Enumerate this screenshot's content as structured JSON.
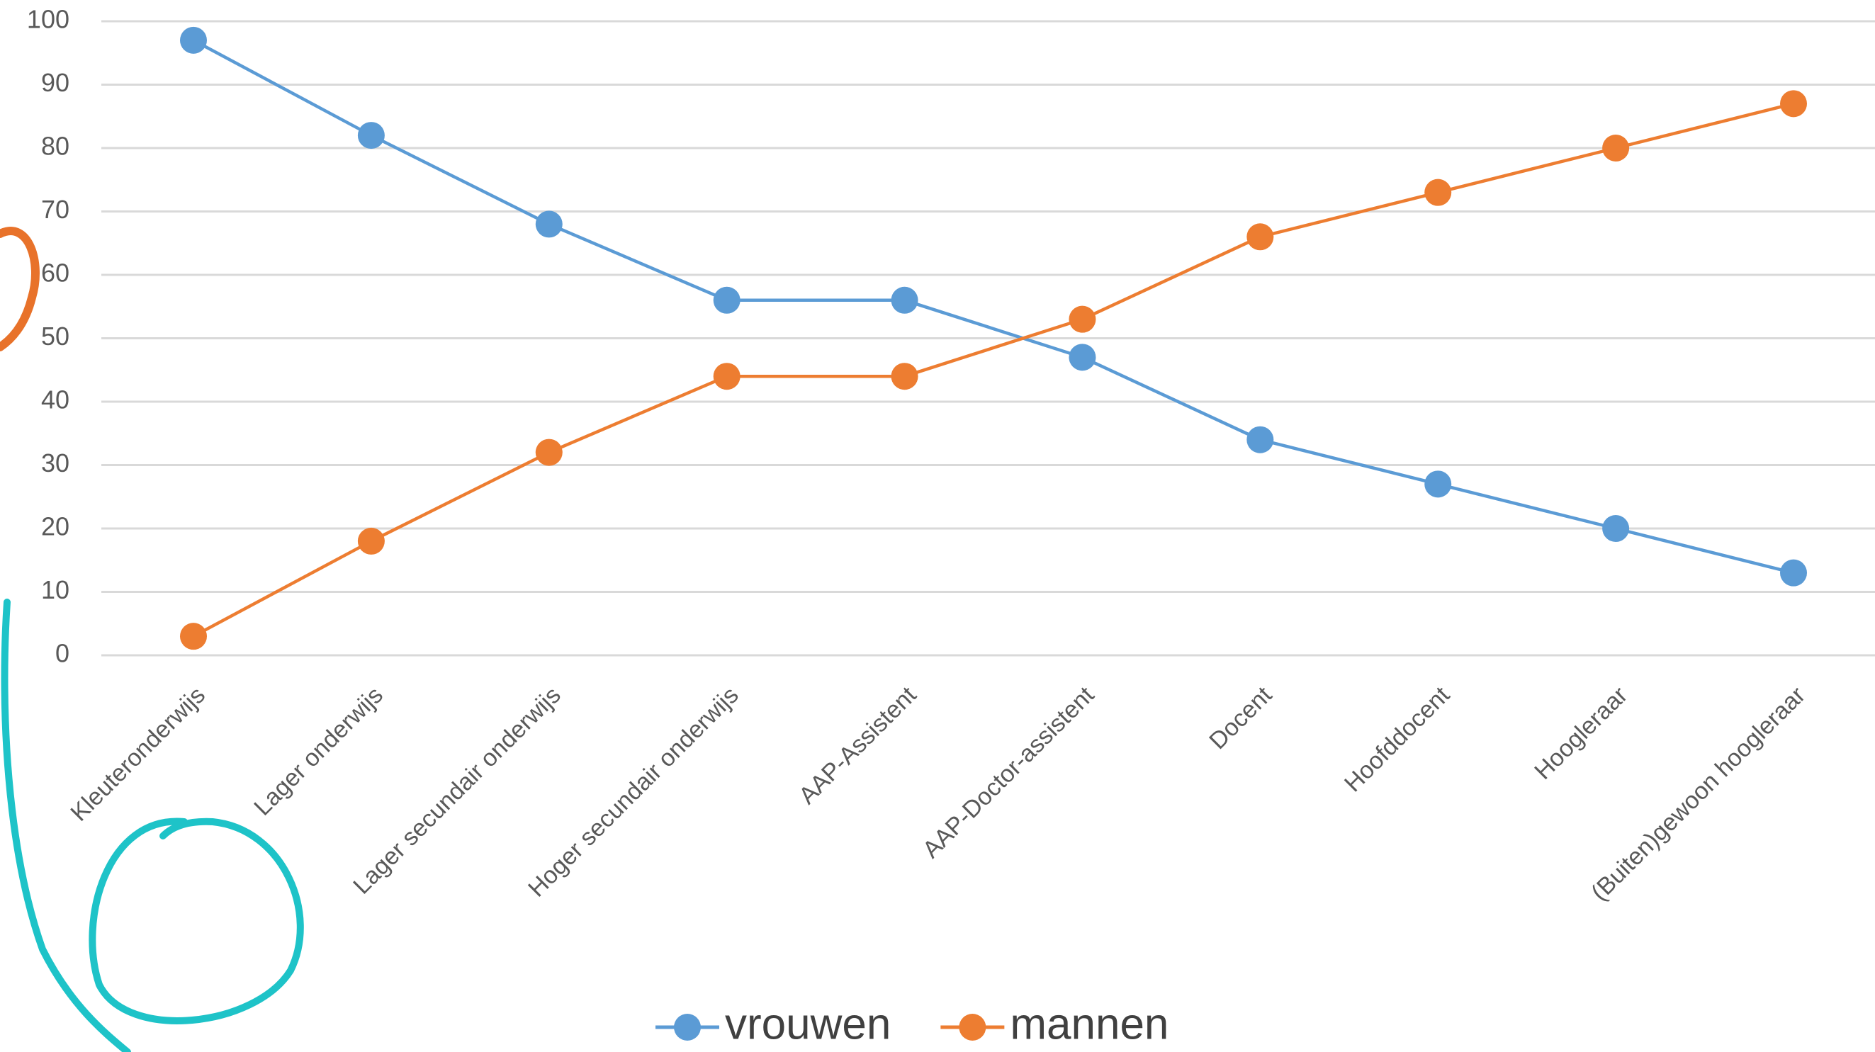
{
  "chart_data": {
    "type": "line",
    "categories": [
      "Kleuteronderwijs",
      "Lager onderwijs",
      "Lager secundair onderwijs",
      "Hoger secundair onderwijs",
      "AAP-Assistent",
      "AAP-Doctor-assistent",
      "Docent",
      "Hoofddocent",
      "Hoogleraar",
      "(Buiten)gewoon hoogleraar"
    ],
    "series": [
      {
        "name": "vrouwen",
        "color": "#5b9bd5",
        "values": [
          97,
          82,
          68,
          56,
          56,
          47,
          34,
          27,
          20,
          13
        ]
      },
      {
        "name": "mannen",
        "color": "#ed7d31",
        "values": [
          3,
          18,
          32,
          44,
          44,
          53,
          66,
          73,
          80,
          87
        ]
      }
    ],
    "ylim": [
      0,
      100
    ],
    "yticks": [
      0,
      10,
      20,
      30,
      40,
      50,
      60,
      70,
      80,
      90,
      100
    ],
    "grid": true,
    "legend": "bottom"
  }
}
